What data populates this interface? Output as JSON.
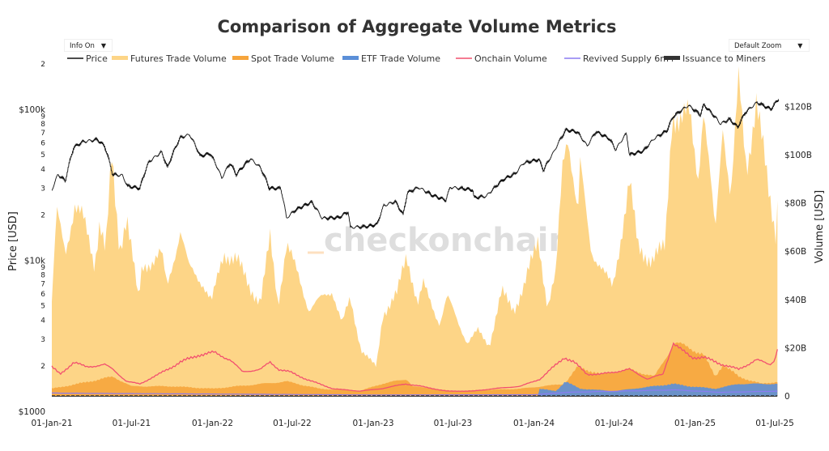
{
  "chart_data": {
    "type": "area",
    "title": "Comparison of Aggregate Volume Metrics",
    "controls": {
      "info": "Info On",
      "zoom": "Default Zoom"
    },
    "legend_position": "top",
    "legend": [
      "Price",
      "Futures Trade Volume",
      "Spot Trade Volume",
      "ETF Trade Volume",
      "Onchain Volume",
      "Revived Supply 6m+",
      "Issuance to Miners"
    ],
    "colors": {
      "Price": "#111111",
      "Futures Trade Volume": "#fdd587",
      "Spot Trade Volume": "#f6a53c",
      "ETF Trade Volume": "#5b8fd8",
      "Onchain Volume": "#f2506f",
      "Revived Supply 6m+": "#8b7cf2",
      "Issuance to Miners": "#333333"
    },
    "watermark": "checkonchain",
    "xlabel": "",
    "ylabel_left": "Price [USD]",
    "ylabel_right": "Volume [USD]",
    "y_left": {
      "scale": "log",
      "range": [
        1000,
        200000
      ],
      "major_ticks": [
        {
          "v": 1000,
          "label": "$1000"
        },
        {
          "v": 10000,
          "label": "$10k"
        },
        {
          "v": 100000,
          "label": "$100k"
        }
      ],
      "minor_labels": [
        "2",
        "3",
        "4",
        "5",
        "6",
        "7",
        "8",
        "9"
      ]
    },
    "y_right": {
      "scale": "linear",
      "range": [
        0,
        130
      ],
      "unit": "B USD",
      "ticks": [
        {
          "v": 0,
          "label": "0"
        },
        {
          "v": 20,
          "label": "$20B"
        },
        {
          "v": 40,
          "label": "$40B"
        },
        {
          "v": 60,
          "label": "$60B"
        },
        {
          "v": 80,
          "label": "$80B"
        },
        {
          "v": 100,
          "label": "$100B"
        },
        {
          "v": 120,
          "label": "$120B"
        }
      ]
    },
    "x_range": [
      "2021-01-01",
      "2025-07-10"
    ],
    "x_ticks": [
      {
        "d": "2021-01-01",
        "label": "01-Jan-21"
      },
      {
        "d": "2021-07-01",
        "label": "01-Jul-21"
      },
      {
        "d": "2022-01-01",
        "label": "01-Jan-22"
      },
      {
        "d": "2022-07-01",
        "label": "01-Jul-22"
      },
      {
        "d": "2023-01-01",
        "label": "01-Jan-23"
      },
      {
        "d": "2023-07-01",
        "label": "01-Jul-23"
      },
      {
        "d": "2024-01-01",
        "label": "01-Jan-24"
      },
      {
        "d": "2024-07-01",
        "label": "01-Jul-24"
      },
      {
        "d": "2025-01-01",
        "label": "01-Jan-25"
      },
      {
        "d": "2025-07-01",
        "label": "01-Jul-25"
      }
    ],
    "grid": false,
    "series": [
      {
        "name": "Price",
        "axis": "left",
        "points": [
          [
            "2021-01-01",
            29000
          ],
          [
            "2021-01-15",
            37000
          ],
          [
            "2021-02-01",
            33500
          ],
          [
            "2021-02-20",
            56000
          ],
          [
            "2021-03-13",
            61000
          ],
          [
            "2021-04-14",
            63000
          ],
          [
            "2021-05-01",
            57000
          ],
          [
            "2021-05-19",
            37000
          ],
          [
            "2021-06-10",
            36500
          ],
          [
            "2021-06-22",
            31000
          ],
          [
            "2021-07-20",
            30000
          ],
          [
            "2021-08-10",
            45000
          ],
          [
            "2021-09-07",
            52000
          ],
          [
            "2021-09-21",
            41000
          ],
          [
            "2021-10-20",
            65000
          ],
          [
            "2021-11-10",
            68000
          ],
          [
            "2021-12-04",
            49000
          ],
          [
            "2021-12-27",
            51000
          ],
          [
            "2022-01-22",
            35000
          ],
          [
            "2022-02-10",
            44000
          ],
          [
            "2022-02-24",
            37000
          ],
          [
            "2022-03-28",
            47000
          ],
          [
            "2022-04-20",
            41000
          ],
          [
            "2022-05-10",
            30000
          ],
          [
            "2022-06-05",
            30000
          ],
          [
            "2022-06-18",
            19000
          ],
          [
            "2022-07-08",
            21500
          ],
          [
            "2022-08-14",
            24300
          ],
          [
            "2022-09-07",
            19000
          ],
          [
            "2022-10-15",
            19200
          ],
          [
            "2022-11-05",
            21000
          ],
          [
            "2022-11-10",
            16500
          ],
          [
            "2022-12-20",
            16800
          ],
          [
            "2023-01-10",
            17300
          ],
          [
            "2023-01-25",
            23000
          ],
          [
            "2023-02-20",
            24500
          ],
          [
            "2023-03-10",
            20000
          ],
          [
            "2023-03-20",
            28000
          ],
          [
            "2023-04-14",
            30400
          ],
          [
            "2023-05-15",
            27000
          ],
          [
            "2023-06-15",
            25000
          ],
          [
            "2023-06-25",
            30500
          ],
          [
            "2023-08-15",
            29300
          ],
          [
            "2023-08-18",
            26000
          ],
          [
            "2023-09-15",
            26600
          ],
          [
            "2023-10-25",
            34500
          ],
          [
            "2023-11-20",
            37500
          ],
          [
            "2023-12-08",
            44000
          ],
          [
            "2024-01-12",
            46500
          ],
          [
            "2024-01-23",
            39500
          ],
          [
            "2024-02-15",
            52000
          ],
          [
            "2024-03-14",
            73000
          ],
          [
            "2024-04-08",
            71000
          ],
          [
            "2024-05-01",
            57000
          ],
          [
            "2024-05-21",
            71000
          ],
          [
            "2024-06-20",
            64000
          ],
          [
            "2024-07-05",
            54000
          ],
          [
            "2024-07-29",
            69000
          ],
          [
            "2024-08-05",
            50000
          ],
          [
            "2024-09-06",
            53000
          ],
          [
            "2024-09-30",
            64000
          ],
          [
            "2024-10-29",
            72000
          ],
          [
            "2024-11-13",
            90000
          ],
          [
            "2024-12-17",
            106000
          ],
          [
            "2025-01-13",
            92000
          ],
          [
            "2025-01-21",
            107000
          ],
          [
            "2025-02-28",
            80000
          ],
          [
            "2025-03-20",
            86000
          ],
          [
            "2025-04-08",
            76000
          ],
          [
            "2025-04-25",
            95000
          ],
          [
            "2025-05-22",
            111000
          ],
          [
            "2025-06-22",
            100000
          ],
          [
            "2025-07-10",
            117000
          ]
        ]
      },
      {
        "name": "Futures Trade Volume",
        "axis": "right",
        "stack": 0,
        "points": [
          [
            "2021-01-01",
            39
          ],
          [
            "2021-01-12",
            76
          ],
          [
            "2021-02-01",
            59
          ],
          [
            "2021-02-22",
            80
          ],
          [
            "2021-03-12",
            74
          ],
          [
            "2021-04-08",
            54
          ],
          [
            "2021-04-20",
            74
          ],
          [
            "2021-05-03",
            60
          ],
          [
            "2021-05-17",
            97
          ],
          [
            "2021-06-04",
            60
          ],
          [
            "2021-06-20",
            76
          ],
          [
            "2021-07-17",
            39
          ],
          [
            "2021-07-25",
            53
          ],
          [
            "2021-09-07",
            59
          ],
          [
            "2021-09-20",
            45
          ],
          [
            "2021-10-20",
            69
          ],
          [
            "2021-11-08",
            53
          ],
          [
            "2021-12-10",
            47
          ],
          [
            "2021-12-30",
            39
          ],
          [
            "2022-01-27",
            59
          ],
          [
            "2022-02-24",
            57
          ],
          [
            "2022-03-26",
            45
          ],
          [
            "2022-04-20",
            39
          ],
          [
            "2022-05-12",
            65
          ],
          [
            "2022-05-30",
            38
          ],
          [
            "2022-06-18",
            63
          ],
          [
            "2022-07-20",
            47
          ],
          [
            "2022-08-08",
            36
          ],
          [
            "2022-09-30",
            44
          ],
          [
            "2022-10-22",
            30
          ],
          [
            "2022-11-10",
            40
          ],
          [
            "2022-12-05",
            19
          ],
          [
            "2023-01-08",
            12
          ],
          [
            "2023-01-23",
            34
          ],
          [
            "2023-02-24",
            42
          ],
          [
            "2023-03-18",
            59
          ],
          [
            "2023-04-12",
            38
          ],
          [
            "2023-04-25",
            46
          ],
          [
            "2023-06-01",
            30
          ],
          [
            "2023-06-18",
            41
          ],
          [
            "2023-08-03",
            22
          ],
          [
            "2023-08-27",
            27
          ],
          [
            "2023-09-22",
            21
          ],
          [
            "2023-10-20",
            43
          ],
          [
            "2023-11-17",
            36
          ],
          [
            "2023-12-10",
            45
          ],
          [
            "2024-01-11",
            66
          ],
          [
            "2024-02-01",
            36
          ],
          [
            "2024-02-20",
            50
          ],
          [
            "2024-03-07",
            100
          ],
          [
            "2024-03-18",
            110
          ],
          [
            "2024-04-10",
            73
          ],
          [
            "2024-04-15",
            95
          ],
          [
            "2024-05-10",
            61
          ],
          [
            "2024-06-10",
            50
          ],
          [
            "2024-06-28",
            45
          ],
          [
            "2024-08-05",
            88
          ],
          [
            "2024-08-24",
            62
          ],
          [
            "2024-09-25",
            56
          ],
          [
            "2024-10-25",
            62
          ],
          [
            "2024-11-10",
            119
          ],
          [
            "2024-11-28",
            112
          ],
          [
            "2024-12-20",
            117
          ],
          [
            "2025-01-08",
            92
          ],
          [
            "2025-01-20",
            119
          ],
          [
            "2025-02-16",
            67
          ],
          [
            "2025-03-05",
            115
          ],
          [
            "2025-03-23",
            82
          ],
          [
            "2025-04-10",
            129
          ],
          [
            "2025-04-28",
            94
          ],
          [
            "2025-05-20",
            123
          ],
          [
            "2025-06-17",
            84
          ],
          [
            "2025-07-04",
            67
          ],
          [
            "2025-07-10",
            95
          ]
        ]
      },
      {
        "name": "Spot Trade Volume",
        "axis": "right",
        "stack": 1,
        "points": [
          [
            "2021-01-01",
            3
          ],
          [
            "2021-03-01",
            5
          ],
          [
            "2021-05-20",
            8
          ],
          [
            "2021-07-01",
            4
          ],
          [
            "2021-10-01",
            4
          ],
          [
            "2022-01-01",
            3
          ],
          [
            "2022-06-18",
            6
          ],
          [
            "2022-09-01",
            3
          ],
          [
            "2022-12-01",
            2
          ],
          [
            "2023-01-20",
            5
          ],
          [
            "2023-03-18",
            7
          ],
          [
            "2023-04-01",
            4
          ],
          [
            "2023-07-01",
            2
          ],
          [
            "2023-12-01",
            3
          ],
          [
            "2024-03-10",
            5
          ],
          [
            "2024-04-10",
            12
          ],
          [
            "2024-06-01",
            9
          ],
          [
            "2024-08-05",
            11
          ],
          [
            "2024-10-01",
            8
          ],
          [
            "2024-11-15",
            22
          ],
          [
            "2024-12-20",
            20
          ],
          [
            "2025-01-20",
            17
          ],
          [
            "2025-02-16",
            8
          ],
          [
            "2025-03-05",
            13
          ],
          [
            "2025-04-10",
            8
          ],
          [
            "2025-06-01",
            5
          ],
          [
            "2025-07-10",
            6
          ]
        ]
      },
      {
        "name": "ETF Trade Volume",
        "axis": "right",
        "stack": 2,
        "points": [
          [
            "2021-01-01",
            0
          ],
          [
            "2024-01-10",
            0
          ],
          [
            "2024-01-12",
            3
          ],
          [
            "2024-02-20",
            2
          ],
          [
            "2024-03-12",
            6
          ],
          [
            "2024-04-15",
            3
          ],
          [
            "2024-07-01",
            2
          ],
          [
            "2024-11-12",
            5
          ],
          [
            "2024-12-20",
            4
          ],
          [
            "2025-02-16",
            3
          ],
          [
            "2025-04-10",
            5
          ],
          [
            "2025-07-10",
            5
          ]
        ]
      },
      {
        "name": "Onchain Volume",
        "axis": "right",
        "line": true,
        "points": [
          [
            "2021-01-01",
            12
          ],
          [
            "2021-01-20",
            9
          ],
          [
            "2021-02-20",
            14
          ],
          [
            "2021-03-20",
            12
          ],
          [
            "2021-05-01",
            13
          ],
          [
            "2021-05-20",
            11
          ],
          [
            "2021-06-20",
            6
          ],
          [
            "2021-07-20",
            5
          ],
          [
            "2021-09-01",
            9
          ],
          [
            "2021-10-20",
            14
          ],
          [
            "2021-12-01",
            17
          ],
          [
            "2022-01-05",
            18
          ],
          [
            "2022-02-10",
            15
          ],
          [
            "2022-03-10",
            10
          ],
          [
            "2022-04-20",
            11
          ],
          [
            "2022-05-12",
            14
          ],
          [
            "2022-06-01",
            11
          ],
          [
            "2022-06-25",
            10
          ],
          [
            "2022-08-01",
            7
          ],
          [
            "2022-10-01",
            3
          ],
          [
            "2022-12-01",
            2
          ],
          [
            "2023-01-20",
            3
          ],
          [
            "2023-03-15",
            5
          ],
          [
            "2023-04-20",
            4
          ],
          [
            "2023-06-15",
            2
          ],
          [
            "2023-08-15",
            2
          ],
          [
            "2023-10-01",
            3
          ],
          [
            "2023-12-01",
            4
          ],
          [
            "2024-01-15",
            7
          ],
          [
            "2024-03-10",
            16
          ],
          [
            "2024-04-01",
            14
          ],
          [
            "2024-05-01",
            9
          ],
          [
            "2024-06-01",
            9
          ],
          [
            "2024-08-05",
            11
          ],
          [
            "2024-09-15",
            7
          ],
          [
            "2024-10-20",
            9
          ],
          [
            "2024-11-12",
            22
          ],
          [
            "2024-12-01",
            19
          ],
          [
            "2024-12-25",
            16
          ],
          [
            "2025-01-20",
            16
          ],
          [
            "2025-03-05",
            13
          ],
          [
            "2025-04-10",
            11
          ],
          [
            "2025-05-20",
            15
          ],
          [
            "2025-06-20",
            13
          ],
          [
            "2025-07-01",
            15
          ],
          [
            "2025-07-10",
            22
          ]
        ]
      },
      {
        "name": "Revived Supply 6m+",
        "axis": "right",
        "line": true,
        "points": [
          [
            "2021-01-01",
            1.2
          ],
          [
            "2021-06-01",
            1
          ],
          [
            "2022-01-01",
            0.8
          ],
          [
            "2023-01-01",
            0.4
          ],
          [
            "2024-01-01",
            0.5
          ],
          [
            "2024-03-15",
            1.5
          ],
          [
            "2024-11-15",
            2.5
          ],
          [
            "2025-03-01",
            1.5
          ],
          [
            "2025-07-10",
            2
          ]
        ]
      },
      {
        "name": "Issuance to Miners",
        "axis": "right",
        "line": true,
        "points": [
          [
            "2021-01-01",
            0.04
          ],
          [
            "2025-07-10",
            0.04
          ]
        ]
      }
    ]
  }
}
